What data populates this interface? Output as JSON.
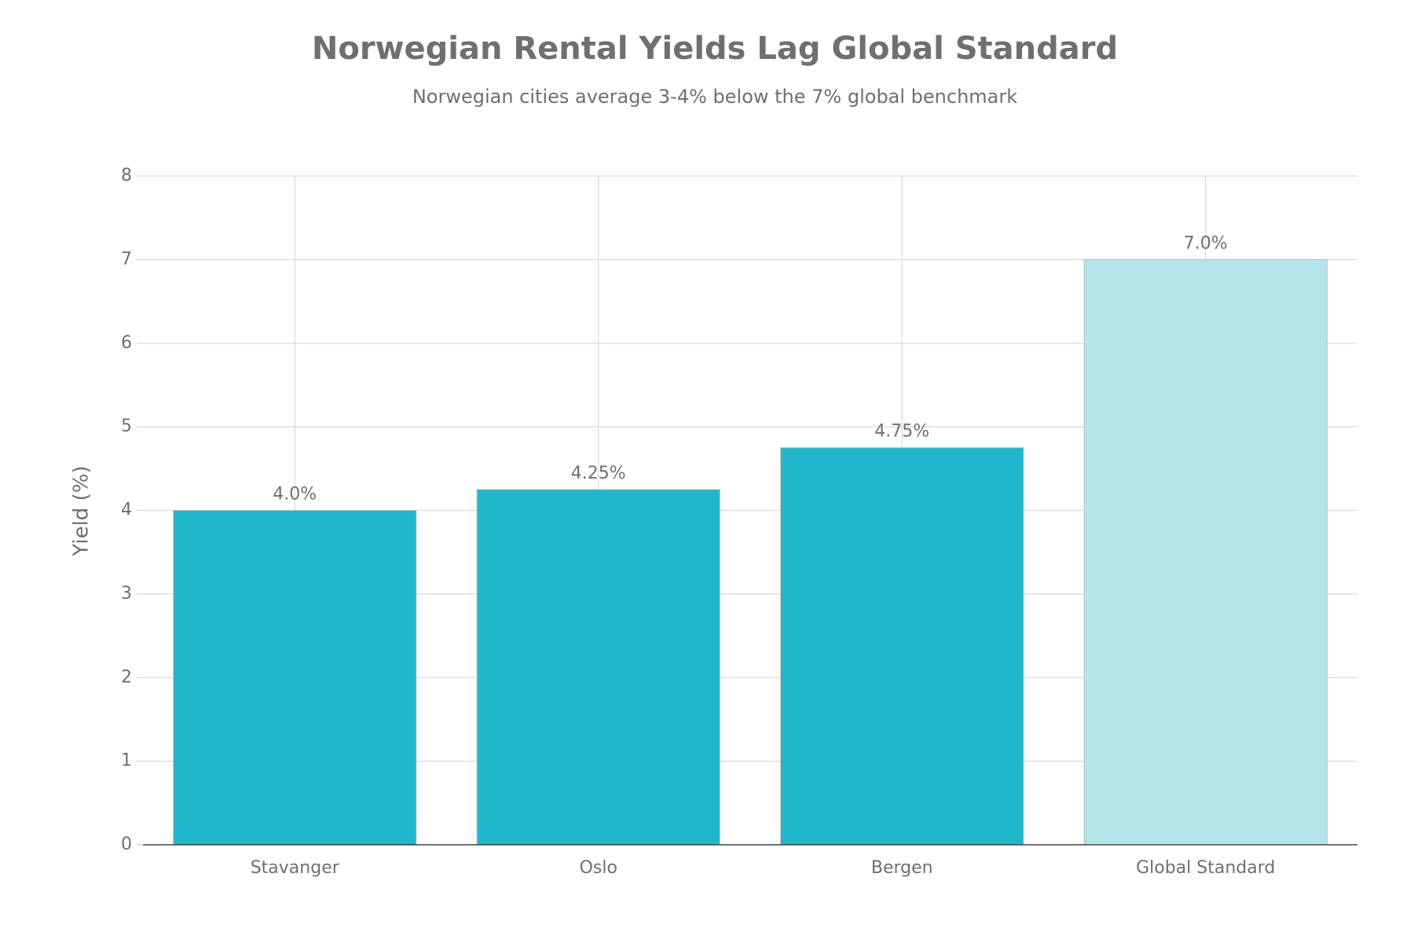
{
  "chart_data": {
    "type": "bar",
    "title": "Norwegian Rental Yields Lag Global Standard",
    "subtitle": "Norwegian cities average 3-4% below the 7% global benchmark",
    "y_label": "Yield (%)",
    "categories": [
      "Stavanger",
      "Oslo",
      "Bergen",
      "Global Standard"
    ],
    "values": [
      4,
      4.25,
      4.75,
      7
    ],
    "value_labels": [
      "4.0%",
      "4.25%",
      "4.75%",
      "7.0%"
    ],
    "colors": [
      "#20b7cc",
      "#20b7cc",
      "#20b7cc",
      "#b3e5ea"
    ],
    "ylim": [
      0,
      8
    ],
    "yticks": [
      0,
      1,
      2,
      3,
      4,
      5,
      6,
      7,
      8
    ],
    "grid": true
  }
}
